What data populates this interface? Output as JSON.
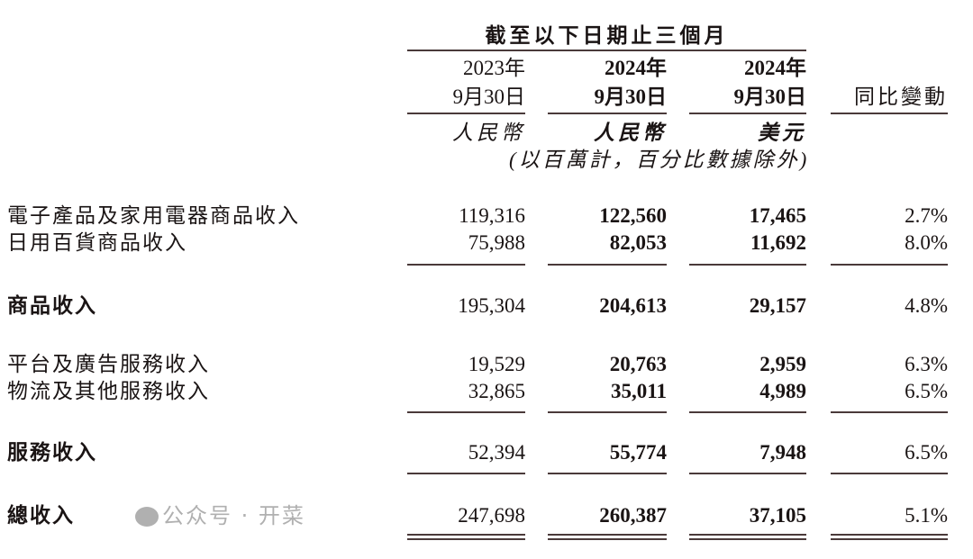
{
  "header": {
    "period": "截至以下日期止三個月",
    "columns": [
      {
        "year": "2023年",
        "date": "9月30日",
        "currency": "人民幣",
        "bold": false
      },
      {
        "year": "2024年",
        "date": "9月30日",
        "currency": "人民幣",
        "bold": true
      },
      {
        "year": "2024年",
        "date": "9月30日",
        "currency": "美元",
        "bold": true
      }
    ],
    "yoy": "同比變動",
    "unit_note": "(以百萬計，百分比數據除外)"
  },
  "rows": [
    {
      "label": "電子產品及家用電器商品收入",
      "v": [
        "119,316",
        "122,560",
        "17,465",
        "2.7%"
      ],
      "bold": false
    },
    {
      "label": "日用百貨商品收入",
      "v": [
        "75,988",
        "82,053",
        "11,692",
        "8.0%"
      ],
      "bold": false
    },
    {
      "label": "商品收入",
      "v": [
        "195,304",
        "204,613",
        "29,157",
        "4.8%"
      ],
      "bold": true
    },
    {
      "label": "平台及廣告服務收入",
      "v": [
        "19,529",
        "20,763",
        "2,959",
        "6.3%"
      ],
      "bold": false
    },
    {
      "label": "物流及其他服務收入",
      "v": [
        "32,865",
        "35,011",
        "4,989",
        "6.5%"
      ],
      "bold": false
    },
    {
      "label": "服務收入",
      "v": [
        "52,394",
        "55,774",
        "7,948",
        "6.5%"
      ],
      "bold": true
    },
    {
      "label": "總收入",
      "v": [
        "247,698",
        "260,387",
        "37,105",
        "5.1%"
      ],
      "bold": true
    }
  ],
  "watermark": "公众号 · 开菜"
}
